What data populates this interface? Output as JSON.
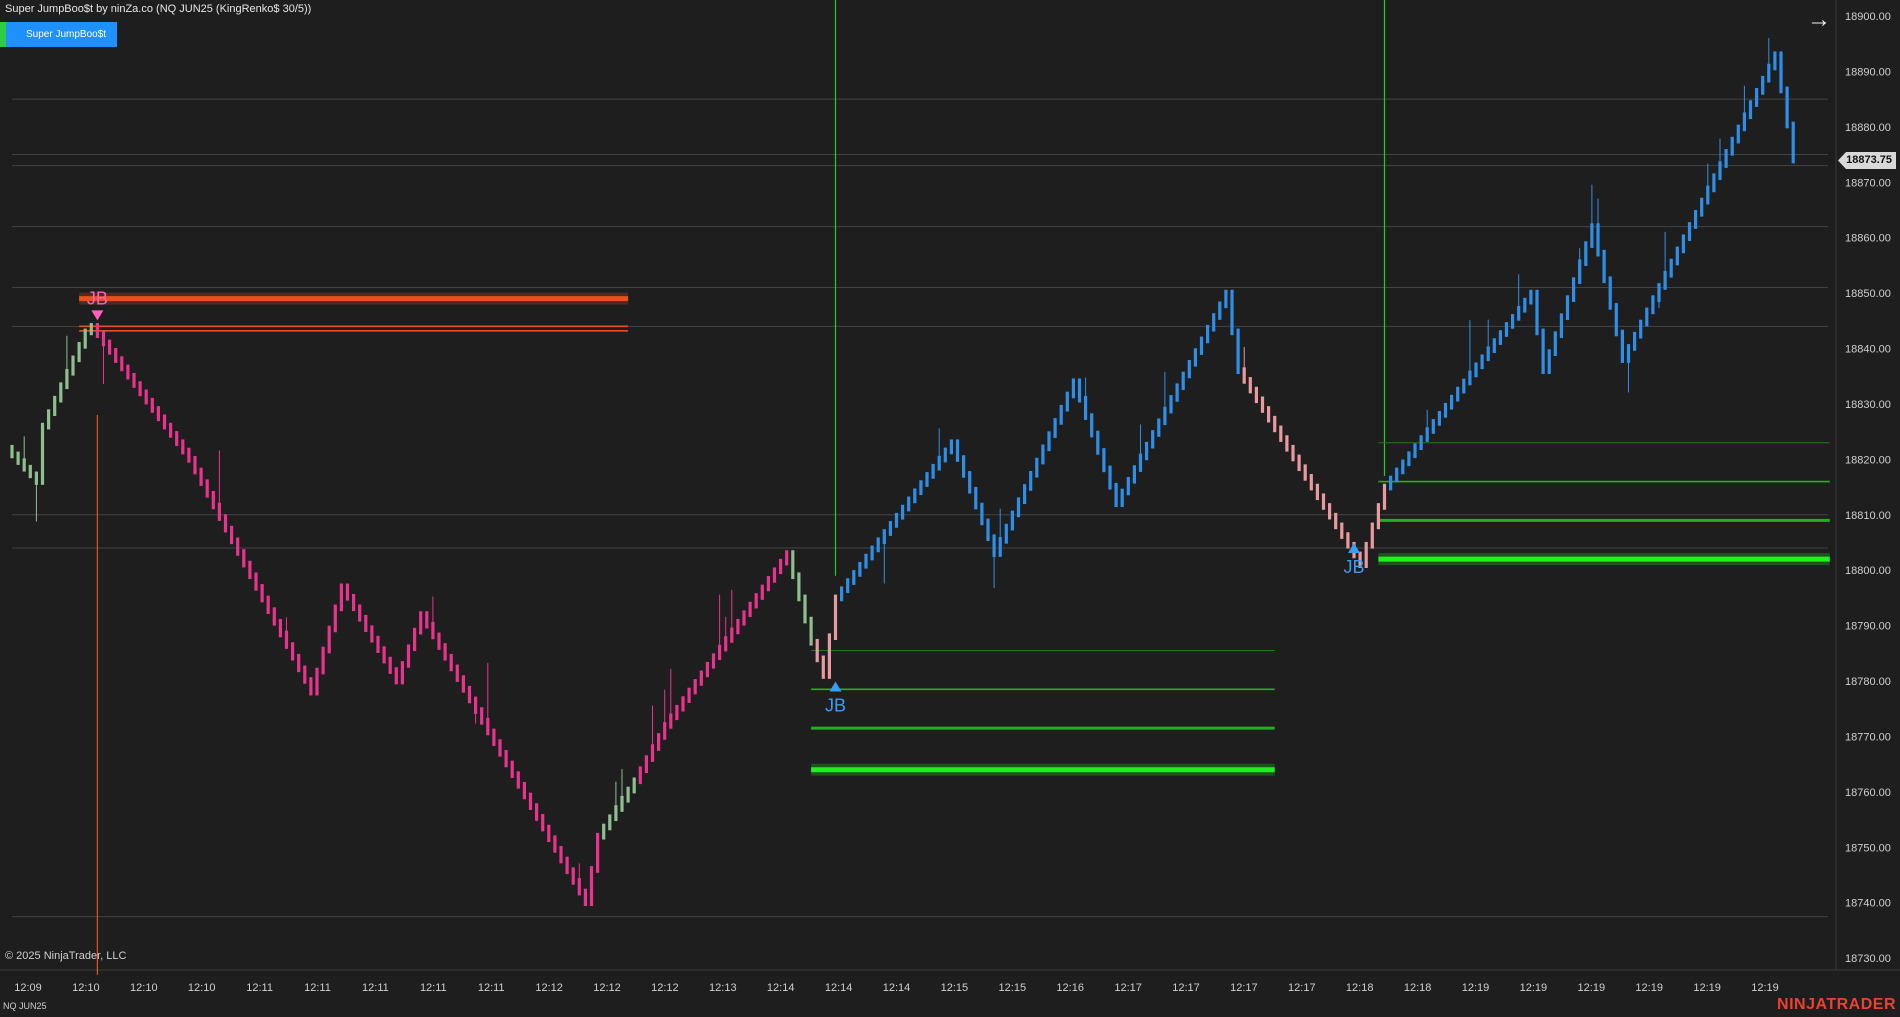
{
  "window": {
    "title": "Super JumpBoo$t by ninZa.co (NQ JUN25 (KingRenko$ 30/5))",
    "indicator_button": "Super JumpBoo$t",
    "copyright": "© 2025 NinjaTrader, LLC",
    "instrument": "NQ JUN25",
    "logo": "NINJATRADER",
    "arrow_icon": "right-arrow-icon"
  },
  "last_price": "18873.75",
  "colors": {
    "background": "#1e1e1e",
    "down_pink": "#e8338f",
    "up_blue": "#2e8fe8",
    "green_level": "#22dd22",
    "red_level": "#e8501e",
    "neutral_green": "#8fbf8f",
    "neutral_pink": "#e89aa0"
  },
  "chart_data": {
    "type": "candlestick",
    "y_ticks": [
      "18900.00",
      "18890.00",
      "18880.00",
      "18870.00",
      "18860.00",
      "18850.00",
      "18840.00",
      "18830.00",
      "18820.00",
      "18810.00",
      "18800.00",
      "18790.00",
      "18780.00",
      "18770.00",
      "18760.00",
      "18750.00",
      "18740.00",
      "18730.00"
    ],
    "y_tick_values": [
      18900,
      18890,
      18880,
      18870,
      18860,
      18850,
      18840,
      18830,
      18820,
      18810,
      18800,
      18790,
      18780,
      18770,
      18760,
      18750,
      18740,
      18730
    ],
    "x_ticks": [
      "12:09",
      "12:10",
      "12:10",
      "12:10",
      "12:11",
      "12:11",
      "12:11",
      "12:11",
      "12:11",
      "12:12",
      "12:12",
      "12:12",
      "12:13",
      "12:14",
      "12:14",
      "12:14",
      "12:15",
      "12:15",
      "12:16",
      "12:17",
      "12:17",
      "12:17",
      "12:17",
      "12:18",
      "12:18",
      "12:19",
      "12:19",
      "12:19",
      "12:19",
      "12:19",
      "12:19"
    ],
    "ylim": [
      18727,
      18903
    ],
    "signals": [
      {
        "label": "JB",
        "direction": "short",
        "price": 18844,
        "bar": 14
      },
      {
        "label": "JB",
        "direction": "long",
        "price": 18781,
        "bar": 135
      },
      {
        "label": "JB",
        "direction": "long",
        "price": 18806,
        "bar": 220
      }
    ],
    "levels": [
      {
        "price": 18849,
        "color": "#e8501e",
        "weight": "thick",
        "from_bar": 11,
        "to_bar": 101
      },
      {
        "price": 18844,
        "color": "#e8501e",
        "weight": "thin",
        "from_bar": 11,
        "to_bar": 101
      },
      {
        "price": 18843.2,
        "color": "#e8501e",
        "weight": "thin",
        "from_bar": 11,
        "to_bar": 101
      },
      {
        "price": 18785.5,
        "color": "#1c7a1c",
        "weight": "hair",
        "from_bar": 131,
        "to_bar": 207
      },
      {
        "price": 18778.5,
        "color": "#22b022",
        "weight": "thin",
        "from_bar": 131,
        "to_bar": 207
      },
      {
        "price": 18771.5,
        "color": "#22b022",
        "weight": "medium",
        "from_bar": 131,
        "to_bar": 207
      },
      {
        "price": 18764,
        "color": "#22ee22",
        "weight": "thick",
        "from_bar": 131,
        "to_bar": 207
      },
      {
        "price": 18823,
        "color": "#1c7a1c",
        "weight": "hair",
        "from_bar": 224,
        "to_bar": 298
      },
      {
        "price": 18816,
        "color": "#22b022",
        "weight": "thin",
        "from_bar": 224,
        "to_bar": 298
      },
      {
        "price": 18809,
        "color": "#22b022",
        "weight": "medium",
        "from_bar": 224,
        "to_bar": 298
      },
      {
        "price": 18802,
        "color": "#22ee22",
        "weight": "thick",
        "from_bar": 224,
        "to_bar": 298
      }
    ],
    "vertical_markers": [
      {
        "bar": 14,
        "color": "#e8501e",
        "from_price": 18828,
        "to_price": 18727
      },
      {
        "bar": 135,
        "color": "#22cc22",
        "from_price": 18903,
        "to_price": 18799
      },
      {
        "bar": 225,
        "color": "#22cc22",
        "from_price": 18903,
        "to_price": 18817
      }
    ],
    "gray_lines": [
      18885,
      18875,
      18873,
      18862,
      18844,
      18810,
      18804,
      18851,
      18737.5
    ],
    "path_points": [
      [
        0,
        18822,
        "g"
      ],
      [
        5,
        18816,
        "g"
      ],
      [
        6,
        18826,
        "g"
      ],
      [
        13,
        18843,
        "g"
      ],
      [
        14,
        18844,
        "p"
      ],
      [
        30,
        18820,
        "p"
      ],
      [
        50,
        18778,
        "p"
      ],
      [
        55,
        18797,
        "p"
      ],
      [
        64,
        18780,
        "p"
      ],
      [
        68,
        18792,
        "p"
      ],
      [
        95,
        18740,
        "p"
      ],
      [
        97,
        18752,
        "g"
      ],
      [
        103,
        18762,
        "p"
      ],
      [
        108,
        18772,
        "p"
      ],
      [
        128,
        18803,
        "g"
      ],
      [
        132,
        18787,
        "n"
      ],
      [
        134,
        18781,
        "n"
      ],
      [
        136,
        18795,
        "b"
      ],
      [
        155,
        18823,
        "b"
      ],
      [
        162,
        18803,
        "b"
      ],
      [
        175,
        18834,
        "b"
      ],
      [
        182,
        18812,
        "b"
      ],
      [
        200,
        18850,
        "b"
      ],
      [
        202,
        18836,
        "n"
      ],
      [
        222,
        18801,
        "n"
      ],
      [
        226,
        18815,
        "b"
      ],
      [
        250,
        18850,
        "b"
      ],
      [
        252,
        18836,
        "b"
      ],
      [
        260,
        18862,
        "b"
      ],
      [
        265,
        18838,
        "b"
      ],
      [
        290,
        18893,
        "b"
      ],
      [
        293,
        18874,
        "b"
      ]
    ]
  }
}
